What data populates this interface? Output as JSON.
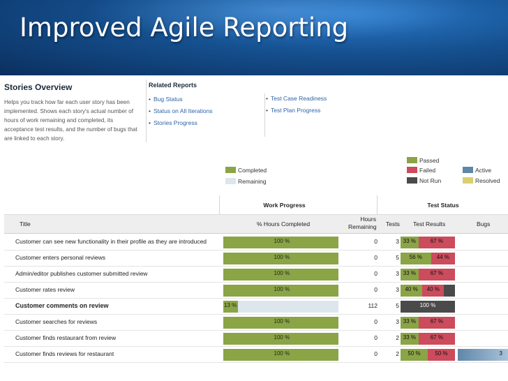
{
  "slide": {
    "title": "Improved Agile Reporting"
  },
  "overview": {
    "title": "Stories Overview",
    "description": "Helps you track how far each user story has been implemented. Shows each story's actual number of hours of work remaining and completed, its acceptance test results, and the number of bugs that are linked to each story."
  },
  "related": {
    "title": "Related Reports",
    "links": [
      "Bug Status",
      "Status on All Iterations",
      "Stories Progress",
      "Test Case Readiness",
      "Test Plan Progress"
    ]
  },
  "legend": {
    "work": [
      {
        "label": "Completed",
        "color": "#8aa446"
      },
      {
        "label": "Remaining",
        "color": "#dde6ed"
      }
    ],
    "tests": [
      {
        "label": "Passed",
        "color": "#8aa446"
      },
      {
        "label": "Failed",
        "color": "#cc4b5c"
      },
      {
        "label": "Not Run",
        "color": "#4a4a4a"
      }
    ],
    "bugs": [
      {
        "label": "Active",
        "color": "#5f87a8"
      },
      {
        "label": "Resolved",
        "color": "#d9cf72"
      }
    ]
  },
  "table": {
    "group_headers": {
      "work": "Work Progress",
      "test": "Test Status"
    },
    "columns": {
      "title": "Title",
      "hours_completed": "% Hours Completed",
      "hours_remaining": "Hours Remaining",
      "tests": "Tests",
      "test_results": "Test Results",
      "bugs": "Bugs"
    },
    "rows": [
      {
        "title": "Customer can see new functionality in their profile as they are introduced",
        "bold": false,
        "completed_pct": 100,
        "completed_label": "100 %",
        "hours_remaining": "0",
        "tests": "3",
        "passed_pct": 33,
        "failed_pct": 67,
        "notrun_pct": 0,
        "passed_label": "33 %",
        "failed_label": "67 %",
        "notrun_label": "",
        "bugs_active": ""
      },
      {
        "title": "Customer enters personal reviews",
        "bold": false,
        "completed_pct": 100,
        "completed_label": "100 %",
        "hours_remaining": "0",
        "tests": "5",
        "passed_pct": 56,
        "failed_pct": 44,
        "notrun_pct": 0,
        "passed_label": "56 %",
        "failed_label": "44 %",
        "notrun_label": "",
        "bugs_active": ""
      },
      {
        "title": "Admin/editor publishes customer submitted review",
        "bold": false,
        "completed_pct": 100,
        "completed_label": "100 %",
        "hours_remaining": "0",
        "tests": "3",
        "passed_pct": 33,
        "failed_pct": 67,
        "notrun_pct": 0,
        "passed_label": "33 %",
        "failed_label": "67 %",
        "notrun_label": "",
        "bugs_active": ""
      },
      {
        "title": "Customer rates review",
        "bold": false,
        "completed_pct": 100,
        "completed_label": "100 %",
        "hours_remaining": "0",
        "tests": "3",
        "passed_pct": 40,
        "failed_pct": 40,
        "notrun_pct": 20,
        "passed_label": "40 %",
        "failed_label": "40 %",
        "notrun_label": "",
        "bugs_active": ""
      },
      {
        "title": "Customer comments on review",
        "bold": true,
        "completed_pct": 13,
        "completed_label": "13 %",
        "hours_remaining": "112",
        "tests": "5",
        "passed_pct": 0,
        "failed_pct": 0,
        "notrun_pct": 100,
        "passed_label": "",
        "failed_label": "",
        "notrun_label": "100 %",
        "bugs_active": ""
      },
      {
        "title": "Customer searches for reviews",
        "bold": false,
        "completed_pct": 100,
        "completed_label": "100 %",
        "hours_remaining": "0",
        "tests": "3",
        "passed_pct": 33,
        "failed_pct": 67,
        "notrun_pct": 0,
        "passed_label": "33 %",
        "failed_label": "67 %",
        "notrun_label": "",
        "bugs_active": ""
      },
      {
        "title": "Customer finds restaurant from review",
        "bold": false,
        "completed_pct": 100,
        "completed_label": "100 %",
        "hours_remaining": "0",
        "tests": "2",
        "passed_pct": 33,
        "failed_pct": 67,
        "notrun_pct": 0,
        "passed_label": "33 %",
        "failed_label": "67 %",
        "notrun_label": "",
        "bugs_active": ""
      },
      {
        "title": "Customer finds reviews for restaurant",
        "bold": false,
        "completed_pct": 100,
        "completed_label": "100 %",
        "hours_remaining": "0",
        "tests": "2",
        "passed_pct": 50,
        "failed_pct": 50,
        "notrun_pct": 0,
        "passed_label": "50 %",
        "failed_label": "50 %",
        "notrun_label": "",
        "bugs_active": "3"
      }
    ]
  }
}
